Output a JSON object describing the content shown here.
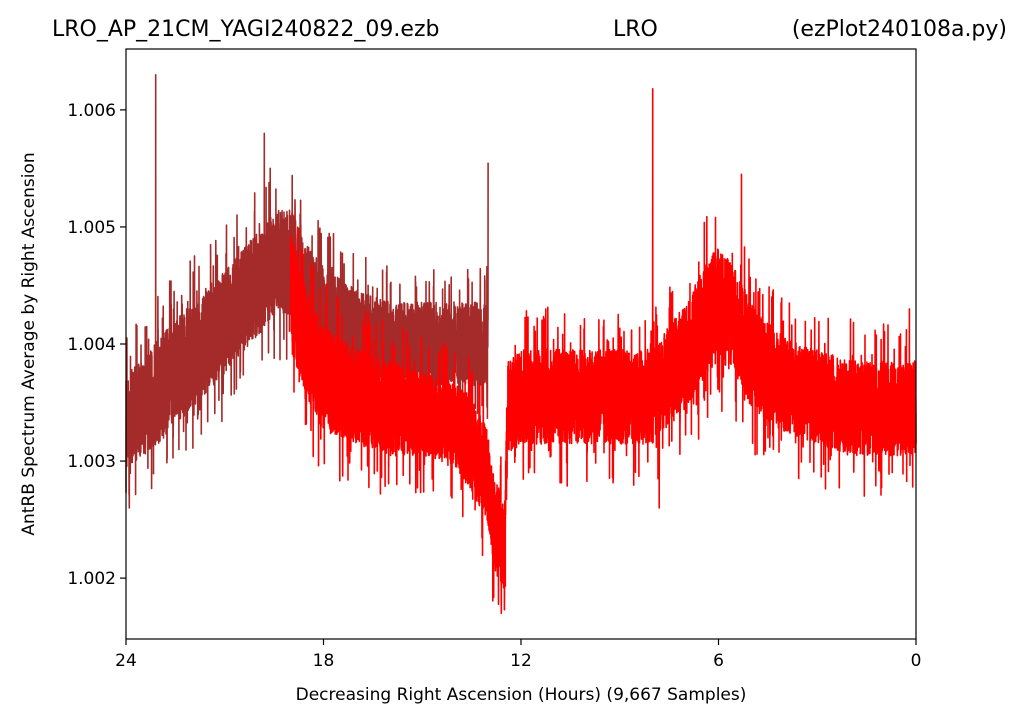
{
  "chart_data": {
    "type": "line",
    "title_left": "LRO_AP_21CM_YAGI240822_09.ezb",
    "title_center": "LRO",
    "title_right": "(ezPlot240108a.py)",
    "xlabel": "Decreasing Right Ascension (Hours) (9,667 Samples)",
    "ylabel": "AntRB Spectrum Average by Right Ascension",
    "xlim": [
      24,
      0
    ],
    "ylim": [
      1.00148,
      1.00652
    ],
    "x_ticks": [
      24,
      18,
      12,
      6,
      0
    ],
    "x_tick_labels": [
      "24",
      "18",
      "12",
      "6",
      "0"
    ],
    "y_ticks": [
      1.002,
      1.003,
      1.004,
      1.005,
      1.006
    ],
    "y_tick_labels": [
      "1.002",
      "1.003",
      "1.004",
      "1.005",
      "1.006"
    ],
    "grid": false,
    "series": [
      {
        "color": "#a52a2a",
        "samples_approx": 9667,
        "x_range": [
          24.0,
          13.0
        ],
        "envelope": {
          "x": [
            24.0,
            23.5,
            23.0,
            22.0,
            21.0,
            20.0,
            19.5,
            19.0,
            18.5,
            18.0,
            17.0,
            16.0,
            15.0,
            14.0,
            13.0
          ],
          "low": [
            1.0029,
            1.003,
            1.0031,
            1.0034,
            1.0037,
            1.004,
            1.0042,
            1.0042,
            1.004,
            1.0038,
            1.0037,
            1.0036,
            1.0036,
            1.0036,
            1.0036
          ],
          "high": [
            1.0038,
            1.0039,
            1.0041,
            1.0044,
            1.0047,
            1.005,
            1.0052,
            1.0052,
            1.0049,
            1.0047,
            1.0045,
            1.0044,
            1.0044,
            1.0044,
            1.0044
          ]
        },
        "spikes": [
          {
            "x": 23.1,
            "y": 1.0063
          },
          {
            "x": 19.8,
            "y": 1.0058
          },
          {
            "x": 13.0,
            "y": 1.00555
          },
          {
            "x": 23.9,
            "y": 1.0026
          }
        ]
      },
      {
        "color": "#ff0000",
        "samples_approx": 9667,
        "x_range": [
          19.0,
          0.0
        ],
        "envelope": {
          "x": [
            19.0,
            18.5,
            18.0,
            17.0,
            16.0,
            15.0,
            14.0,
            13.5,
            13.0,
            12.8,
            12.5,
            12.4,
            12.0,
            11.0,
            10.0,
            9.0,
            8.0,
            7.0,
            6.5,
            6.0,
            5.5,
            5.0,
            4.0,
            3.0,
            2.0,
            1.0,
            0.0
          ],
          "low": [
            1.0039,
            1.0035,
            1.0032,
            1.0031,
            1.003,
            1.003,
            1.0029,
            1.0027,
            1.0024,
            1.002,
            1.0018,
            1.003,
            1.0031,
            1.0031,
            1.0031,
            1.0031,
            1.0031,
            1.0034,
            1.0036,
            1.0038,
            1.0037,
            1.0034,
            1.0032,
            1.0031,
            1.003,
            1.003,
            1.003
          ],
          "high": [
            1.005,
            1.0045,
            1.0042,
            1.004,
            1.0039,
            1.0038,
            1.0037,
            1.0036,
            1.0033,
            1.0029,
            1.0027,
            1.0039,
            1.004,
            1.004,
            1.004,
            1.004,
            1.004,
            1.0044,
            1.0047,
            1.0049,
            1.0047,
            1.0044,
            1.0041,
            1.004,
            1.0039,
            1.0039,
            1.0039
          ]
        },
        "spikes": [
          {
            "x": 8.0,
            "y": 1.00618
          },
          {
            "x": 5.3,
            "y": 1.00545
          },
          {
            "x": 12.6,
            "y": 1.0017
          },
          {
            "x": 7.8,
            "y": 1.0026
          },
          {
            "x": 0.2,
            "y": 1.0043
          }
        ]
      }
    ]
  }
}
